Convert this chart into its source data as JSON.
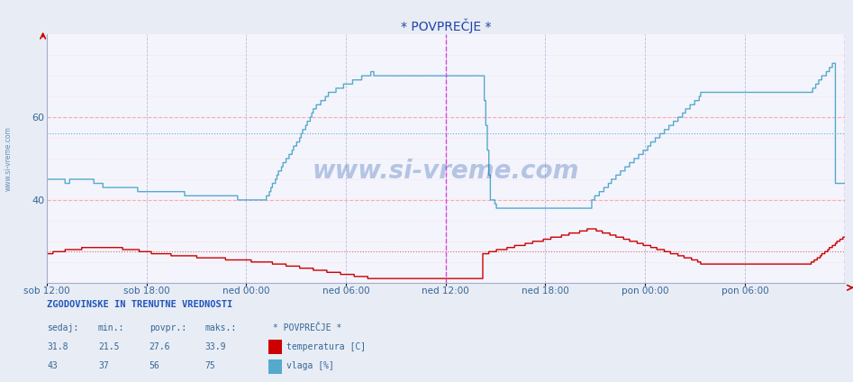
{
  "title": "* POVPREČJE *",
  "bg_color": "#e8ecf4",
  "plot_bg_color": "#f4f4fc",
  "x_labels": [
    "sob 12:00",
    "sob 18:00",
    "ned 00:00",
    "ned 06:00",
    "ned 12:00",
    "ned 18:00",
    "pon 00:00",
    "pon 06:00"
  ],
  "ylim_min": 20,
  "ylim_max": 80,
  "yticks": [
    40,
    60
  ],
  "temp_color": "#cc0000",
  "hum_color": "#55aacc",
  "vline_color": "#dd44dd",
  "temp_avg": 27.6,
  "temp_min": 21.5,
  "temp_max": 33.9,
  "temp_current": 31.8,
  "hum_avg": 56,
  "hum_min": 37,
  "hum_max": 75,
  "hum_current": 43,
  "watermark": "www.si-vreme.com",
  "ylabel_text": "www.si-vreme.com",
  "bottom_title": "ZGODOVINSKE IN TRENUTNE VREDNOSTI",
  "col_headers": [
    "sedaj:",
    "min.:",
    "povpr.:",
    "maks.:",
    "* POVPREČJE *"
  ],
  "legend_temp": "temperatura [C]",
  "legend_hum": "vlaga [%]"
}
